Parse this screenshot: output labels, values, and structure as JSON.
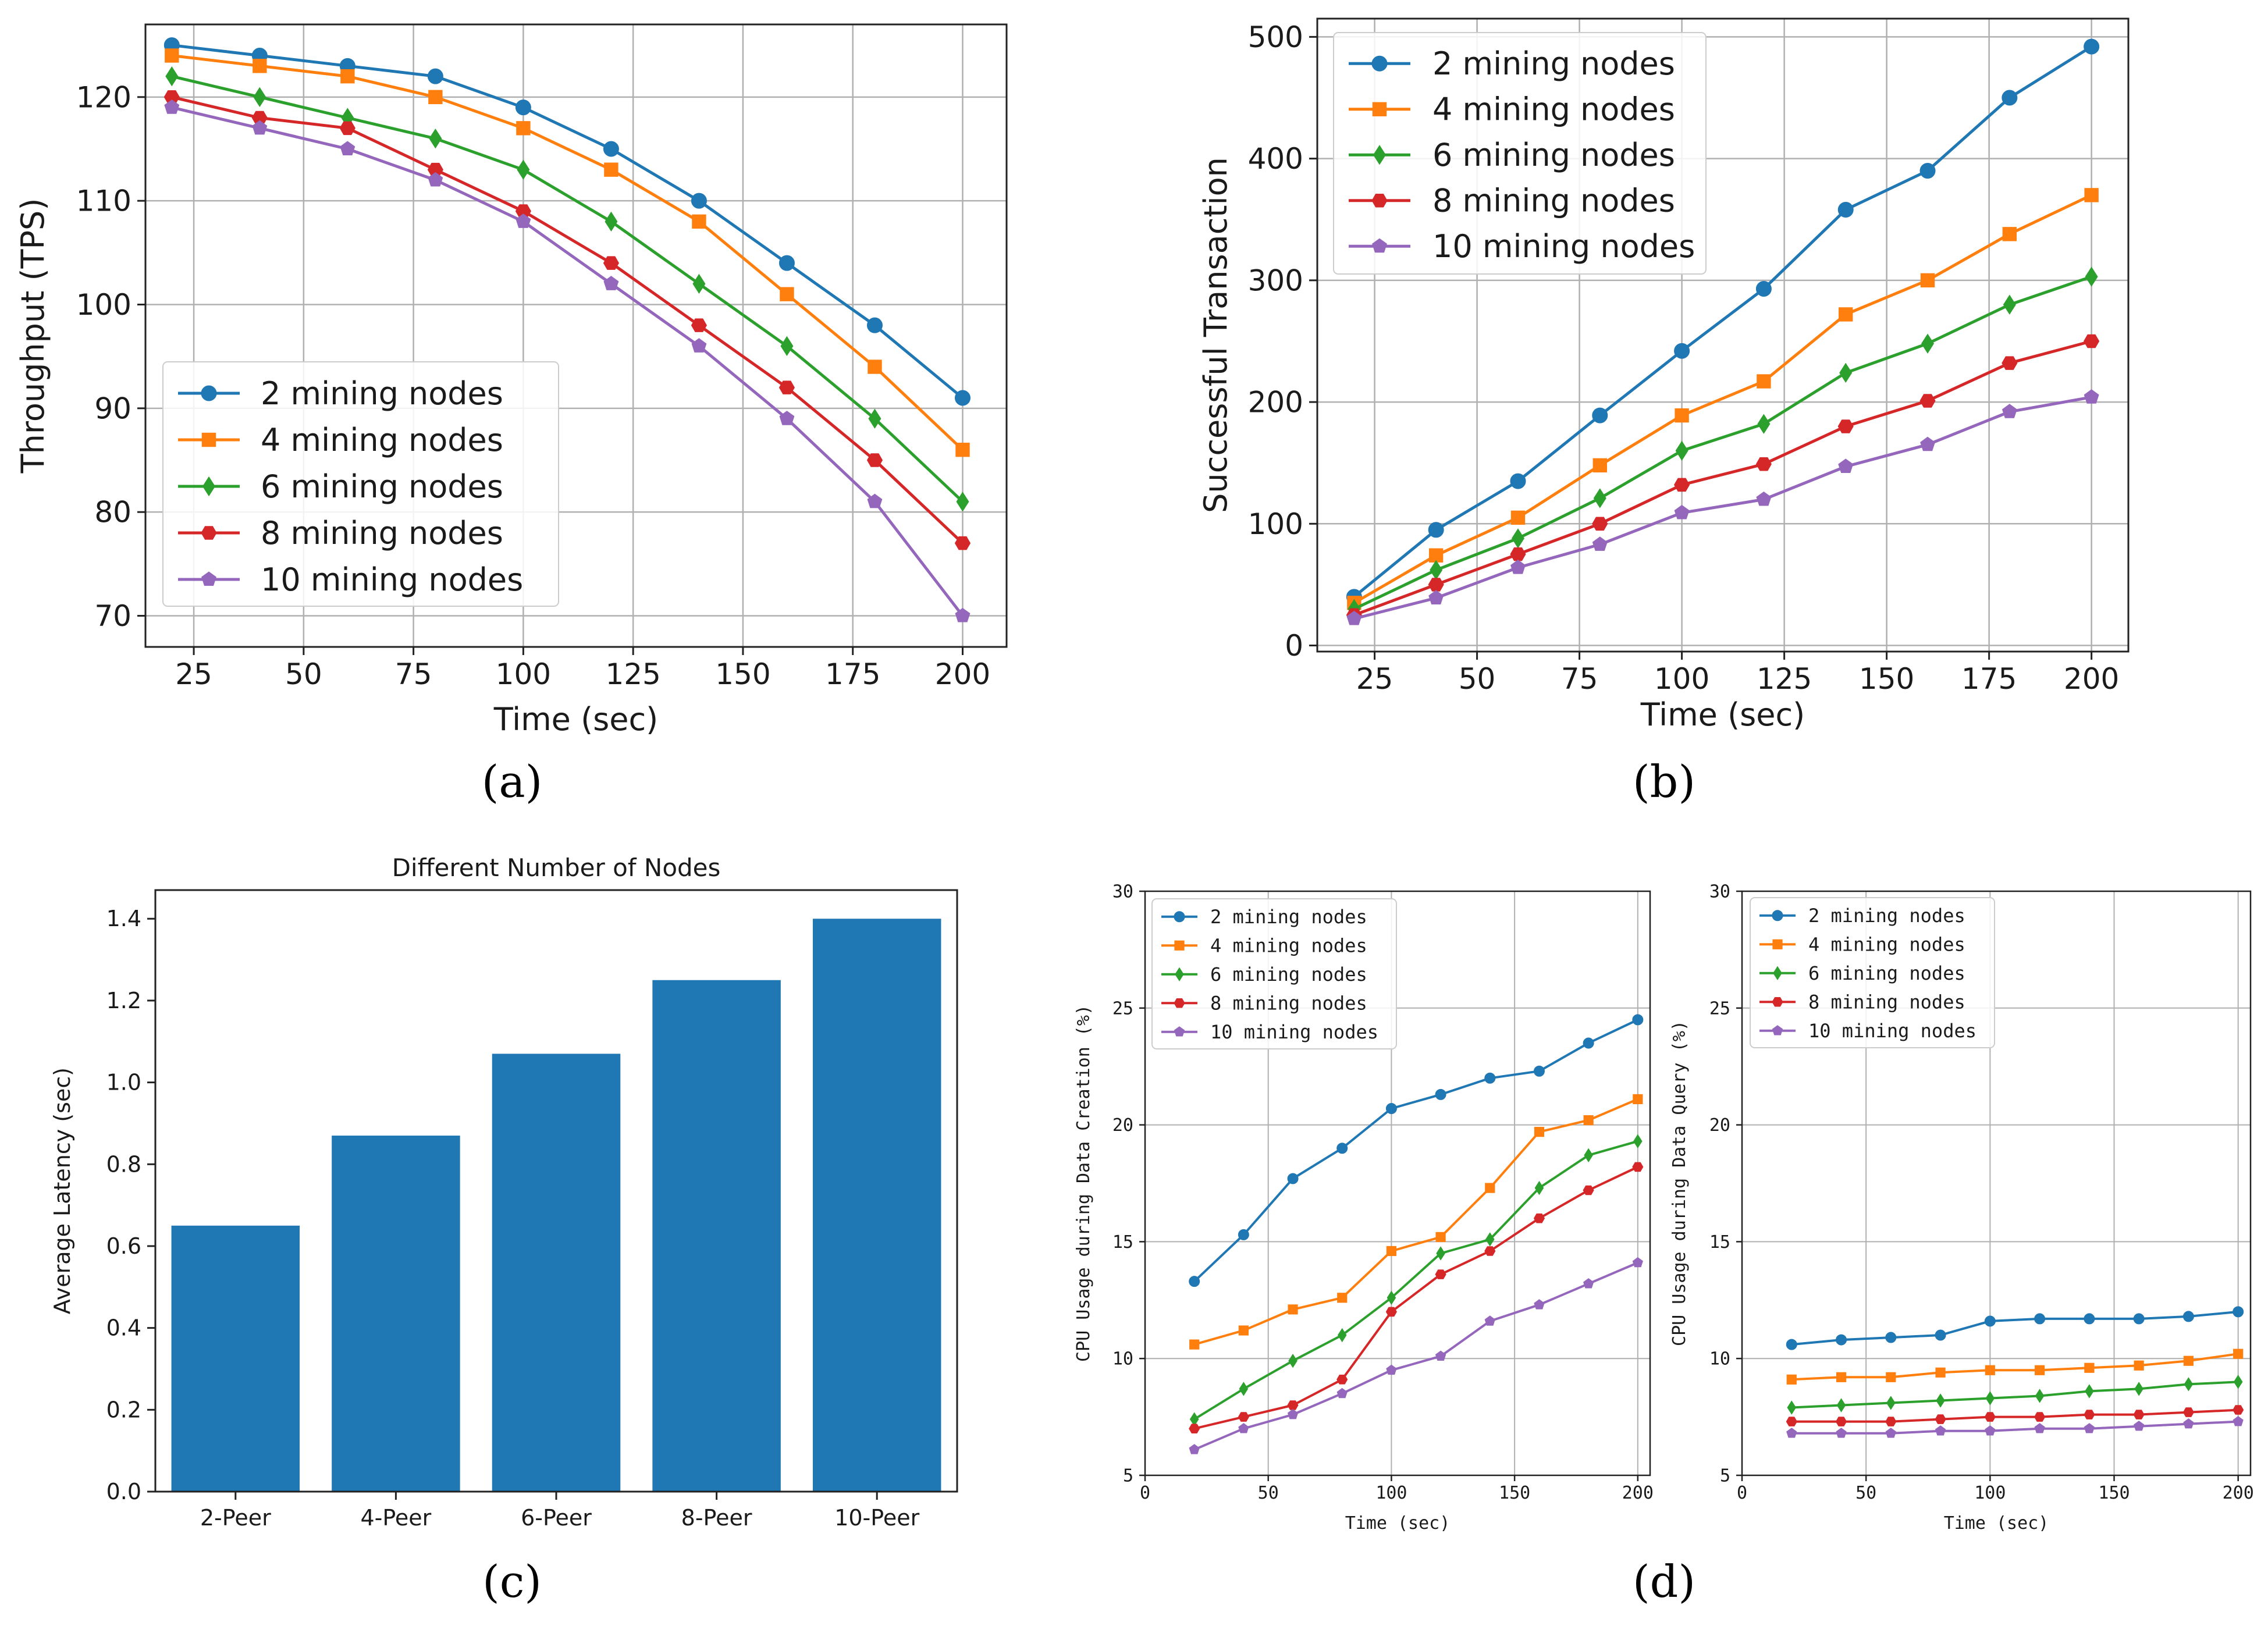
{
  "colors": {
    "s2": "#1f77b4",
    "s4": "#ff7f0e",
    "s6": "#2ca02c",
    "s8": "#d62728",
    "s10": "#9467bd",
    "bar": "#1f77b4",
    "grid": "#b0b0b0"
  },
  "chart_data": [
    {
      "id": "a",
      "type": "line",
      "caption": "(a)",
      "xlabel": "Time (sec)",
      "ylabel": "Throughput (TPS)",
      "xlim": [
        14,
        210
      ],
      "ylim": [
        67,
        127
      ],
      "xticks": [
        25,
        50,
        75,
        100,
        125,
        150,
        175,
        200
      ],
      "yticks": [
        70,
        80,
        90,
        100,
        110,
        120
      ],
      "grid": true,
      "legend_position": "lower-left",
      "x": [
        20,
        40,
        60,
        80,
        100,
        120,
        140,
        160,
        180,
        200
      ],
      "series": [
        {
          "name": "2 mining nodes",
          "color": "s2",
          "marker": "circle",
          "values": [
            125,
            124,
            123,
            122,
            119,
            115,
            110,
            104,
            98,
            91
          ]
        },
        {
          "name": "4 mining nodes",
          "color": "s4",
          "marker": "square",
          "values": [
            124,
            123,
            122,
            120,
            117,
            113,
            108,
            101,
            94,
            86
          ]
        },
        {
          "name": "6 mining nodes",
          "color": "s6",
          "marker": "diamond",
          "values": [
            122,
            120,
            118,
            116,
            113,
            108,
            102,
            96,
            89,
            81
          ]
        },
        {
          "name": "8 mining nodes",
          "color": "s8",
          "marker": "hexagon",
          "values": [
            120,
            118,
            117,
            113,
            109,
            104,
            98,
            92,
            85,
            77
          ]
        },
        {
          "name": "10 mining nodes",
          "color": "s10",
          "marker": "pentagon",
          "values": [
            119,
            117,
            115,
            112,
            108,
            102,
            96,
            89,
            81,
            70
          ]
        }
      ]
    },
    {
      "id": "b",
      "type": "line",
      "caption": "(b)",
      "xlabel": "Time (sec)",
      "ylabel": "Successful Transaction",
      "xlim": [
        11,
        209
      ],
      "ylim": [
        -5,
        515
      ],
      "xticks": [
        25,
        50,
        75,
        100,
        125,
        150,
        175,
        200
      ],
      "yticks": [
        0,
        100,
        200,
        300,
        400,
        500
      ],
      "grid": true,
      "legend_position": "upper-left",
      "x": [
        20,
        40,
        60,
        80,
        100,
        120,
        140,
        160,
        180,
        200
      ],
      "series": [
        {
          "name": "2 mining nodes",
          "color": "s2",
          "marker": "circle",
          "values": [
            40,
            95,
            135,
            189,
            242,
            293,
            358,
            390,
            450,
            492
          ]
        },
        {
          "name": "4 mining nodes",
          "color": "s4",
          "marker": "square",
          "values": [
            35,
            74,
            105,
            148,
            189,
            217,
            272,
            300,
            338,
            370
          ]
        },
        {
          "name": "6 mining nodes",
          "color": "s6",
          "marker": "diamond",
          "values": [
            30,
            62,
            88,
            121,
            160,
            182,
            224,
            248,
            280,
            303
          ]
        },
        {
          "name": "8 mining nodes",
          "color": "s8",
          "marker": "hexagon",
          "values": [
            25,
            50,
            75,
            100,
            132,
            149,
            180,
            201,
            232,
            250
          ]
        },
        {
          "name": "10 mining nodes",
          "color": "s10",
          "marker": "pentagon",
          "values": [
            22,
            39,
            64,
            83,
            109,
            120,
            147,
            165,
            192,
            204
          ]
        }
      ]
    },
    {
      "id": "c",
      "type": "bar",
      "caption": "(c)",
      "title": "Different Number of Nodes",
      "xlabel": "",
      "ylabel": "Average Latency (sec)",
      "ylim": [
        0,
        1.47
      ],
      "yticks": [
        0.0,
        0.2,
        0.4,
        0.6,
        0.8,
        1.0,
        1.2,
        1.4
      ],
      "ytick_labels": [
        "0.0",
        "0.2",
        "0.4",
        "0.6",
        "0.8",
        "1.0",
        "1.2",
        "1.4"
      ],
      "categories": [
        "2-Peer",
        "4-Peer",
        "6-Peer",
        "8-Peer",
        "10-Peer"
      ],
      "values": [
        0.65,
        0.87,
        1.07,
        1.25,
        1.4
      ],
      "grid": false
    },
    {
      "id": "d1",
      "type": "line",
      "caption": "(d)",
      "xlabel": "Time (sec)",
      "ylabel": "CPU Usage during Data Creation (%)",
      "xlim": [
        0,
        205
      ],
      "ylim": [
        5,
        30
      ],
      "xticks": [
        0,
        50,
        100,
        150,
        200
      ],
      "yticks": [
        5,
        10,
        15,
        20,
        25,
        30
      ],
      "grid": true,
      "legend_position": "upper-left",
      "x": [
        20,
        40,
        60,
        80,
        100,
        120,
        140,
        160,
        180,
        200
      ],
      "series": [
        {
          "name": "2 mining nodes",
          "color": "s2",
          "marker": "circle",
          "values": [
            13.3,
            15.3,
            17.7,
            19.0,
            20.7,
            21.3,
            22.0,
            22.3,
            23.5,
            24.5
          ]
        },
        {
          "name": "4 mining nodes",
          "color": "s4",
          "marker": "square",
          "values": [
            10.6,
            11.2,
            12.1,
            12.6,
            14.6,
            15.2,
            17.3,
            19.7,
            20.2,
            21.1
          ]
        },
        {
          "name": "6 mining nodes",
          "color": "s6",
          "marker": "diamond",
          "values": [
            7.4,
            8.7,
            9.9,
            11.0,
            12.6,
            14.5,
            15.1,
            17.3,
            18.7,
            19.3
          ]
        },
        {
          "name": "8 mining nodes",
          "color": "s8",
          "marker": "hexagon",
          "values": [
            7.0,
            7.5,
            8.0,
            9.1,
            12.0,
            13.6,
            14.6,
            16.0,
            17.2,
            18.2
          ]
        },
        {
          "name": "10 mining nodes",
          "color": "s10",
          "marker": "pentagon",
          "values": [
            6.1,
            7.0,
            7.6,
            8.5,
            9.5,
            10.1,
            11.6,
            12.3,
            13.2,
            14.1
          ]
        }
      ]
    },
    {
      "id": "d2",
      "type": "line",
      "caption": "",
      "xlabel": "Time (sec)",
      "ylabel": "CPU Usage during Data Query (%)",
      "xlim": [
        0,
        205
      ],
      "ylim": [
        5,
        30
      ],
      "xticks": [
        0,
        50,
        100,
        150,
        200
      ],
      "yticks": [
        5,
        10,
        15,
        20,
        25,
        30
      ],
      "grid": true,
      "legend_position": "upper-left",
      "x": [
        20,
        40,
        60,
        80,
        100,
        120,
        140,
        160,
        180,
        200
      ],
      "series": [
        {
          "name": "2 mining nodes",
          "color": "s2",
          "marker": "circle",
          "values": [
            10.6,
            10.8,
            10.9,
            11.0,
            11.6,
            11.7,
            11.7,
            11.7,
            11.8,
            12.0
          ]
        },
        {
          "name": "4 mining nodes",
          "color": "s4",
          "marker": "square",
          "values": [
            9.1,
            9.2,
            9.2,
            9.4,
            9.5,
            9.5,
            9.6,
            9.7,
            9.9,
            10.2
          ]
        },
        {
          "name": "6 mining nodes",
          "color": "s6",
          "marker": "diamond",
          "values": [
            7.9,
            8.0,
            8.1,
            8.2,
            8.3,
            8.4,
            8.6,
            8.7,
            8.9,
            9.0
          ]
        },
        {
          "name": "8 mining nodes",
          "color": "s8",
          "marker": "hexagon",
          "values": [
            7.3,
            7.3,
            7.3,
            7.4,
            7.5,
            7.5,
            7.6,
            7.6,
            7.7,
            7.8
          ]
        },
        {
          "name": "10 mining nodes",
          "color": "s10",
          "marker": "pentagon",
          "values": [
            6.8,
            6.8,
            6.8,
            6.9,
            6.9,
            7.0,
            7.0,
            7.1,
            7.2,
            7.3
          ]
        }
      ]
    }
  ]
}
